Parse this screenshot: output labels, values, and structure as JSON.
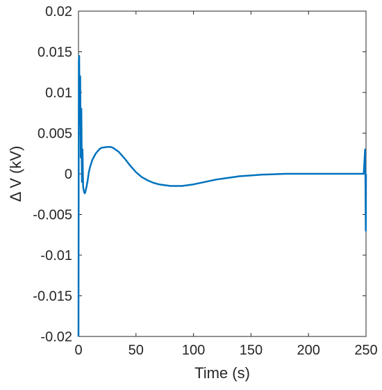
{
  "chart_data": {
    "type": "line",
    "title": "",
    "xlabel": "Time (s)",
    "ylabel": "Δ V (kV)",
    "xlim": [
      0,
      250
    ],
    "ylim": [
      -0.02,
      0.02
    ],
    "xticks": [
      0,
      50,
      100,
      150,
      200,
      250
    ],
    "xtick_labels": [
      "0",
      "50",
      "100",
      "150",
      "200",
      "250"
    ],
    "yticks": [
      0.02,
      0.015,
      0.01,
      0.005,
      0,
      -0.005,
      -0.01,
      -0.015,
      -0.02
    ],
    "ytick_labels": [
      "0.02",
      "0.015",
      "0.01",
      "0.005",
      "0",
      "-0.005",
      "-0.01",
      "-0.015",
      "-0.02"
    ],
    "grid": false,
    "series": [
      {
        "color": "#0072BD",
        "x": [
          0,
          0.3,
          0.6,
          1.0,
          1.5,
          2.0,
          2.5,
          3.0,
          3.5,
          4.0,
          4.5,
          5.0,
          5.5,
          6.0,
          7.0,
          8.0,
          9.0,
          10,
          12,
          15,
          18,
          20,
          25,
          28,
          30,
          35,
          40,
          45,
          50,
          55,
          60,
          65,
          70,
          75,
          80,
          85,
          90,
          95,
          100,
          110,
          120,
          130,
          140,
          150,
          160,
          170,
          180,
          190,
          200,
          210,
          220,
          230,
          240,
          248,
          249.2,
          249.5,
          249.8,
          250
        ],
        "y": [
          -0.02,
          0.014,
          0.0145,
          0.006,
          0.012,
          0.002,
          0.008,
          -0.001,
          0.003,
          -0.0015,
          -0.002,
          -0.0023,
          -0.0024,
          -0.0022,
          -0.0016,
          -0.0008,
          0.0002,
          0.0008,
          0.0017,
          0.0025,
          0.003,
          0.0032,
          0.0033,
          0.0033,
          0.0032,
          0.0027,
          0.0019,
          0.001,
          0.0002,
          -0.0004,
          -0.0008,
          -0.0011,
          -0.0013,
          -0.0014,
          -0.0015,
          -0.0015,
          -0.0015,
          -0.0014,
          -0.0013,
          -0.001,
          -0.0007,
          -0.0005,
          -0.0003,
          -0.0002,
          -0.0001,
          -5e-05,
          0.0,
          0.0,
          0.0,
          0.0,
          0.0,
          0.0,
          0.0,
          0.0,
          0.003,
          -0.001,
          -0.007,
          0.0
        ]
      }
    ]
  }
}
